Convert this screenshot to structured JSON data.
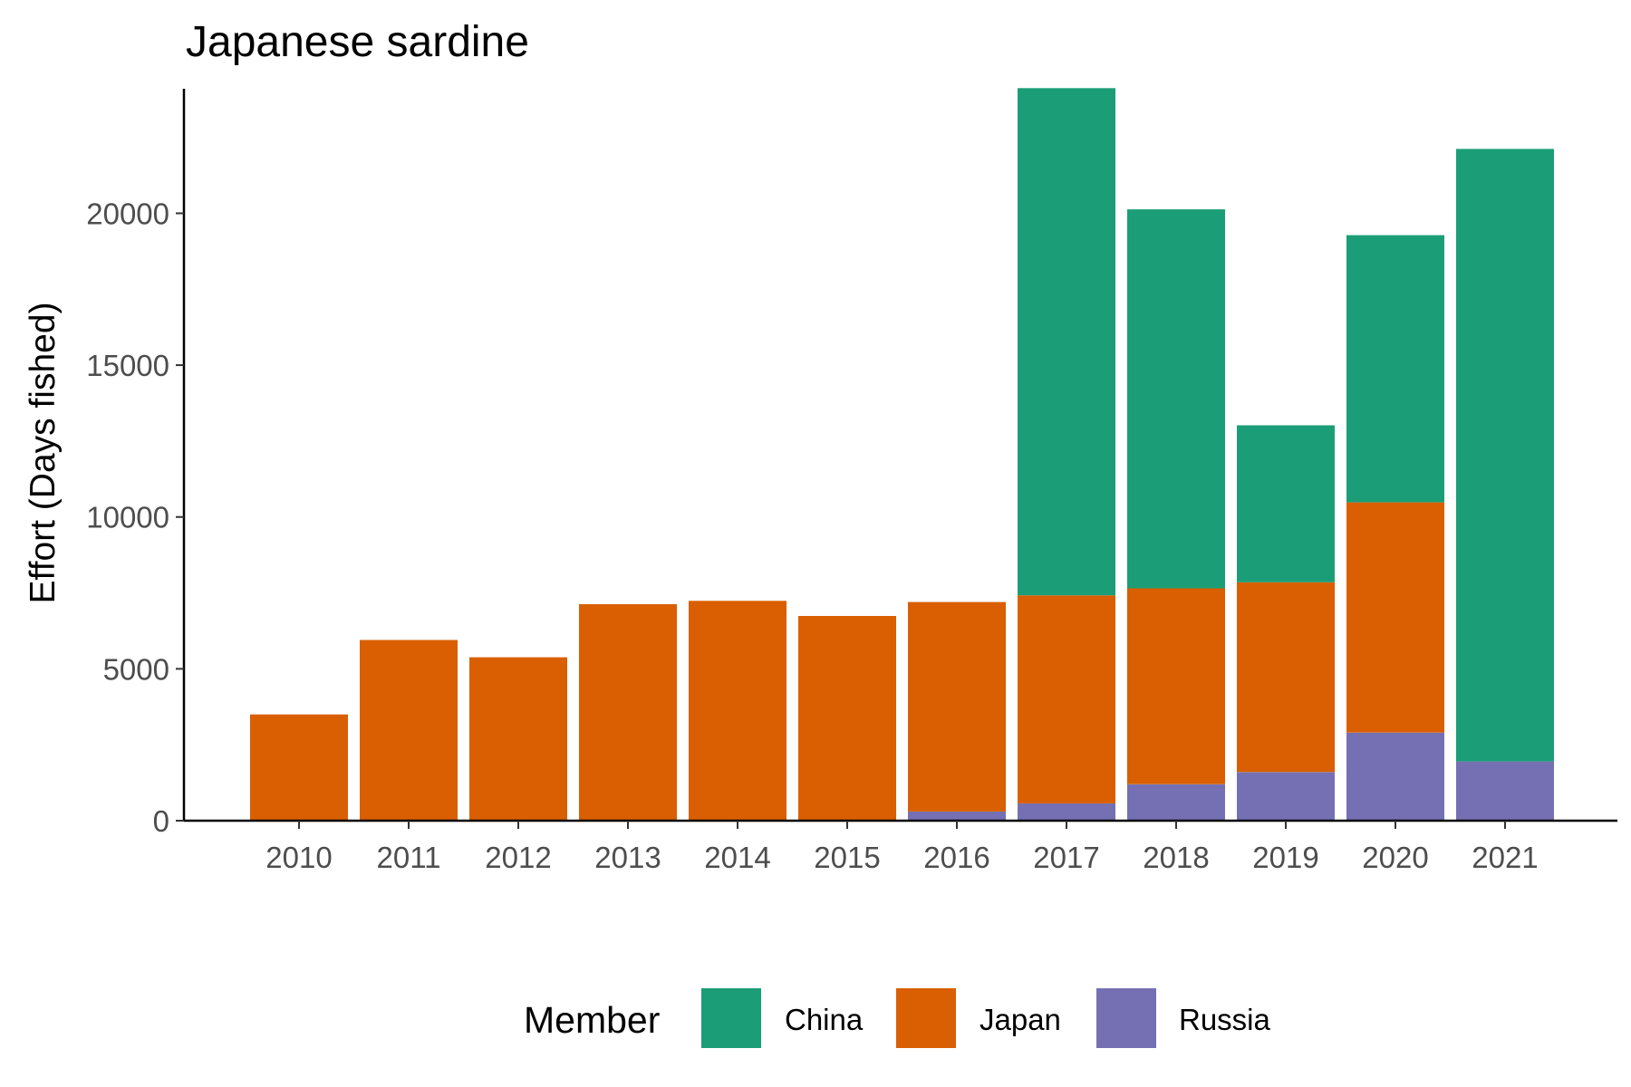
{
  "chart_data": {
    "type": "bar",
    "stacked": true,
    "title": "Japanese sardine",
    "xlabel": "",
    "ylabel": "Effort (Days fished)",
    "ylim": [
      0,
      24100
    ],
    "yticks": [
      0,
      5000,
      10000,
      15000,
      20000
    ],
    "grid": false,
    "legend_position": "bottom",
    "legend_title": "Member",
    "categories": [
      "2010",
      "2011",
      "2012",
      "2013",
      "2014",
      "2015",
      "2016",
      "2017",
      "2018",
      "2019",
      "2020",
      "2021"
    ],
    "series": [
      {
        "name": "Russia",
        "color": "#7570B3",
        "values": [
          0,
          0,
          0,
          0,
          0,
          0,
          300,
          570,
          1200,
          1600,
          2900,
          1950
        ]
      },
      {
        "name": "Japan",
        "color": "#D95F02",
        "values": [
          3500,
          5950,
          5380,
          7130,
          7240,
          6740,
          6900,
          6850,
          6450,
          6250,
          7580,
          0
        ]
      },
      {
        "name": "China",
        "color": "#1B9E77",
        "values": [
          0,
          0,
          0,
          0,
          0,
          0,
          0,
          16700,
          12480,
          5170,
          8800,
          20170
        ]
      }
    ],
    "legend_order": [
      "China",
      "Japan",
      "Russia"
    ]
  }
}
